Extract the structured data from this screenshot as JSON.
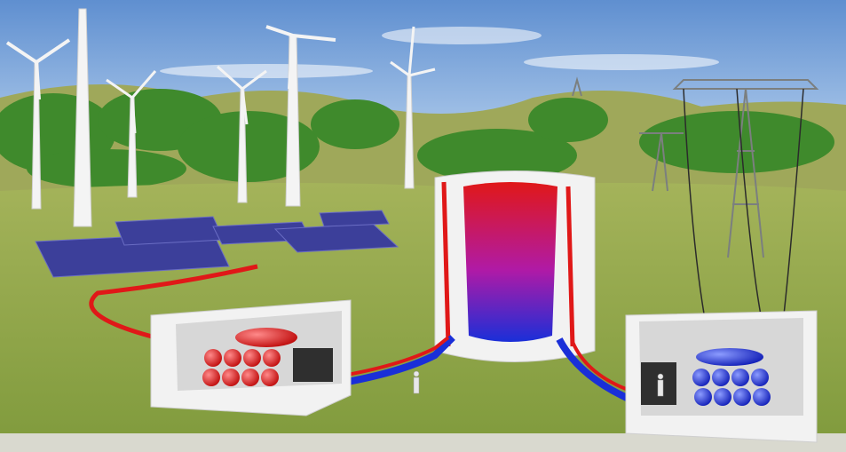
{
  "scene": {
    "subject": "energy-storage-landscape",
    "colors": {
      "sky_top": "#5f8fd0",
      "sky_bottom": "#c9e0f5",
      "grass": "#8ea24a",
      "grass_dark": "#6f8a35",
      "hill_green": "#3f8a2c",
      "hot": "#e01818",
      "cold": "#1a2fd8",
      "solar_panel": "#3c3f9a",
      "concrete": "#f2f2f2"
    },
    "icons": [
      "wind-turbine-icon",
      "solar-panel-icon",
      "power-pylon-icon",
      "storage-tank-icon"
    ]
  }
}
